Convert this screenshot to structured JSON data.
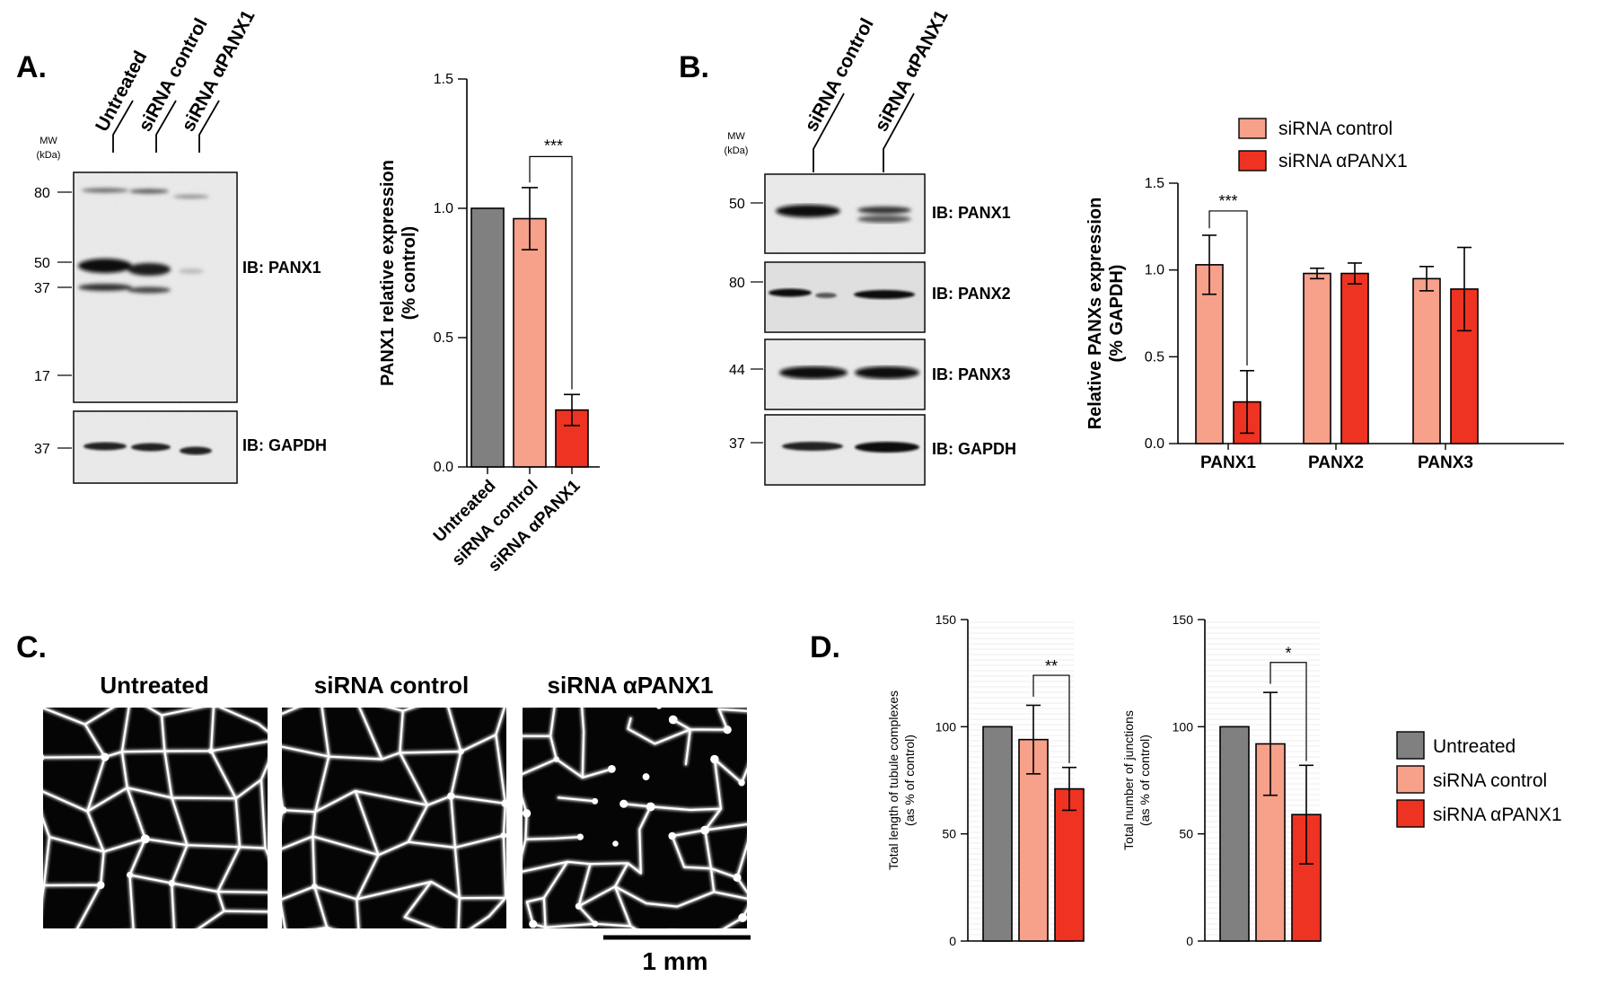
{
  "panels": {
    "a": {
      "letter": "A.",
      "lanes": [
        "Untreated",
        "siRNA control",
        "siRNA αPANX1"
      ],
      "mw_header": [
        "MW",
        "(kDa)"
      ],
      "mw_top": [
        "80",
        "50",
        "37",
        "17"
      ],
      "mw_bottom": [
        "37"
      ],
      "ib_top": "IB: PANX1",
      "ib_bottom": "IB: GAPDH"
    },
    "b": {
      "letter": "B.",
      "lanes": [
        "siRNA control",
        "siRNA αPANX1"
      ],
      "mw_header": [
        "MW",
        "(kDa)"
      ],
      "blots": [
        {
          "mw": "50",
          "label": "IB: PANX1"
        },
        {
          "mw": "80",
          "label": "IB: PANX2"
        },
        {
          "mw": "44",
          "label": "IB: PANX3"
        },
        {
          "mw": "37",
          "label": "IB: GAPDH"
        }
      ]
    },
    "c": {
      "letter": "C.",
      "images": [
        "Untreated",
        "siRNA control",
        "siRNA αPANX1"
      ],
      "scale_bar": "1 mm"
    },
    "d": {
      "letter": "D."
    }
  },
  "colors": {
    "untreated": "#808080",
    "sirna_control": "#F7A08A",
    "sirna_apanx1": "#EE3322"
  },
  "chart_data": [
    {
      "id": "a-bar",
      "type": "bar",
      "categories": [
        "Untreated",
        "siRNA control",
        "siRNA αPANX1"
      ],
      "values": [
        1.0,
        0.96,
        0.22
      ],
      "errors": [
        0,
        0.12,
        0.06
      ],
      "ylabel": "PANX1 relative expression (% control)",
      "ylim": [
        0,
        1.5
      ],
      "yticks": [
        "0.0",
        "0.5",
        "1.0",
        "1.5"
      ],
      "significance": [
        {
          "pair": [
            1,
            2
          ],
          "label": "***"
        }
      ]
    },
    {
      "id": "b-bar",
      "type": "bar",
      "categories": [
        "PANX1",
        "PANX2",
        "PANX3"
      ],
      "series": [
        {
          "name": "siRNA control",
          "values": [
            1.03,
            0.98,
            0.95
          ],
          "errors": [
            0.17,
            0.03,
            0.07
          ]
        },
        {
          "name": "siRNA αPANX1",
          "values": [
            0.24,
            0.98,
            0.89
          ],
          "errors": [
            0.18,
            0.06,
            0.24
          ]
        }
      ],
      "ylabel": "Relative PANXs expression (% GAPDH)",
      "ylim": [
        0,
        1.5
      ],
      "yticks": [
        "0.0",
        "0.5",
        "1.0",
        "1.5"
      ],
      "legend": "top-right",
      "significance": [
        {
          "category": "PANX1",
          "label": "***"
        }
      ]
    },
    {
      "id": "d-length",
      "type": "bar",
      "categories": [
        "Untreated",
        "siRNA control",
        "siRNA αPANX1"
      ],
      "values": [
        100,
        94,
        71
      ],
      "errors": [
        0,
        16,
        10
      ],
      "ylabel": "Total length of tubule complexes (as % of control)",
      "ylim": [
        0,
        150
      ],
      "yticks": [
        "0",
        "50",
        "100",
        "150"
      ],
      "significance": [
        {
          "pair": [
            1,
            2
          ],
          "label": "**"
        }
      ]
    },
    {
      "id": "d-junctions",
      "type": "bar",
      "categories": [
        "Untreated",
        "siRNA control",
        "siRNA αPANX1"
      ],
      "values": [
        100,
        92,
        59
      ],
      "errors": [
        0,
        24,
        23
      ],
      "ylabel": "Total number of junctions (as % of control)",
      "ylim": [
        0,
        150
      ],
      "yticks": [
        "0",
        "50",
        "100",
        "150"
      ],
      "legend": "right",
      "significance": [
        {
          "pair": [
            1,
            2
          ],
          "label": "*"
        }
      ]
    }
  ],
  "legend_d": [
    "Untreated",
    "siRNA control",
    "siRNA αPANX1"
  ]
}
